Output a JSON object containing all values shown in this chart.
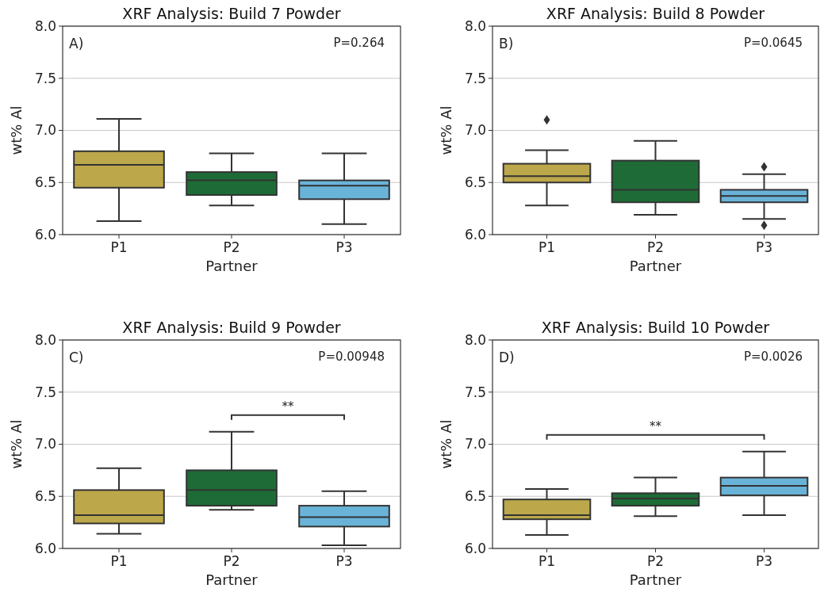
{
  "chart_data": [
    {
      "type": "box",
      "title": "XRF Analysis: Build 7 Powder",
      "xlabel": "Partner",
      "ylabel": "wt% Al",
      "categories": [
        "P1",
        "P2",
        "P3"
      ],
      "colors": [
        "#bca84b",
        "#1e6b37",
        "#6ab3d8"
      ],
      "ylim": [
        6.0,
        8.0
      ],
      "yticks": [
        {
          "value": 6,
          "label": "6.0"
        },
        {
          "value": 6.5,
          "label": "6.5"
        },
        {
          "value": 7,
          "label": "7.0"
        },
        {
          "value": 7.5,
          "label": "7.5"
        },
        {
          "value": 8,
          "label": "8.0"
        }
      ],
      "grid": "y",
      "boxes": [
        {
          "low": 6.13,
          "q1": 6.45,
          "median": 6.67,
          "q3": 6.8,
          "high": 7.11
        },
        {
          "low": 6.28,
          "q1": 6.38,
          "median": 6.52,
          "q3": 6.6,
          "high": 6.78
        },
        {
          "low": 6.1,
          "q1": 6.34,
          "median": 6.47,
          "q3": 6.52,
          "high": 6.78
        }
      ],
      "annotations": [
        "A)",
        "P=0.264"
      ]
    },
    {
      "type": "box",
      "title": "XRF Analysis: Build 8 Powder",
      "xlabel": "Partner",
      "ylabel": "wt% Al",
      "categories": [
        "P1",
        "P2",
        "P3"
      ],
      "colors": [
        "#bca84b",
        "#1e6b37",
        "#6ab3d8"
      ],
      "ylim": [
        6.0,
        8.0
      ],
      "yticks": [
        {
          "value": 6,
          "label": "6.0"
        },
        {
          "value": 6.5,
          "label": "6.5"
        },
        {
          "value": 7,
          "label": "7.0"
        },
        {
          "value": 7.5,
          "label": "7.5"
        },
        {
          "value": 8,
          "label": "8.0"
        }
      ],
      "grid": "y",
      "marker": "diamond",
      "boxes": [
        {
          "low": 6.28,
          "q1": 6.5,
          "median": 6.56,
          "q3": 6.68,
          "high": 6.81,
          "outliers": [
            7.1
          ]
        },
        {
          "low": 6.19,
          "q1": 6.31,
          "median": 6.43,
          "q3": 6.71,
          "high": 6.9
        },
        {
          "low": 6.15,
          "q1": 6.31,
          "median": 6.37,
          "q3": 6.43,
          "high": 6.58,
          "outliers": [
            6.65,
            6.09
          ]
        }
      ],
      "annotations": [
        "B)",
        "P=0.0645"
      ]
    },
    {
      "type": "box",
      "title": "XRF Analysis: Build 9 Powder",
      "xlabel": "Partner",
      "ylabel": "wt% Al",
      "categories": [
        "P1",
        "P2",
        "P3"
      ],
      "colors": [
        "#bca84b",
        "#1e6b37",
        "#6ab3d8"
      ],
      "ylim": [
        6.0,
        8.0
      ],
      "yticks": [
        {
          "value": 6,
          "label": "6.0"
        },
        {
          "value": 6.5,
          "label": "6.5"
        },
        {
          "value": 7,
          "label": "7.0"
        },
        {
          "value": 7.5,
          "label": "7.5"
        },
        {
          "value": 8,
          "label": "8.0"
        }
      ],
      "grid": "y",
      "boxes": [
        {
          "low": 6.14,
          "q1": 6.24,
          "median": 6.32,
          "q3": 6.56,
          "high": 6.77
        },
        {
          "low": 6.37,
          "q1": 6.41,
          "median": 6.56,
          "q3": 6.75,
          "high": 7.12
        },
        {
          "low": 6.03,
          "q1": 6.21,
          "median": 6.3,
          "q3": 6.41,
          "high": 6.55
        }
      ],
      "annotations": [
        "C)",
        "P=0.00948",
        "**"
      ]
    },
    {
      "type": "box",
      "title": "XRF Analysis: Build 10 Powder",
      "xlabel": "Partner",
      "ylabel": "wt% Al",
      "categories": [
        "P1",
        "P2",
        "P3"
      ],
      "colors": [
        "#bca84b",
        "#1e6b37",
        "#6ab3d8"
      ],
      "ylim": [
        6.0,
        8.0
      ],
      "yticks": [
        {
          "value": 6,
          "label": "6.0"
        },
        {
          "value": 6.5,
          "label": "6.5"
        },
        {
          "value": 7,
          "label": "7.0"
        },
        {
          "value": 7.5,
          "label": "7.5"
        },
        {
          "value": 8,
          "label": "8.0"
        }
      ],
      "grid": "y",
      "boxes": [
        {
          "low": 6.13,
          "q1": 6.28,
          "median": 6.32,
          "q3": 6.47,
          "high": 6.57
        },
        {
          "low": 6.31,
          "q1": 6.41,
          "median": 6.48,
          "q3": 6.53,
          "high": 6.68
        },
        {
          "low": 6.32,
          "q1": 6.51,
          "median": 6.6,
          "q3": 6.68,
          "high": 6.93
        }
      ],
      "annotations": [
        "D)",
        "P=0.0026",
        "**"
      ]
    }
  ]
}
